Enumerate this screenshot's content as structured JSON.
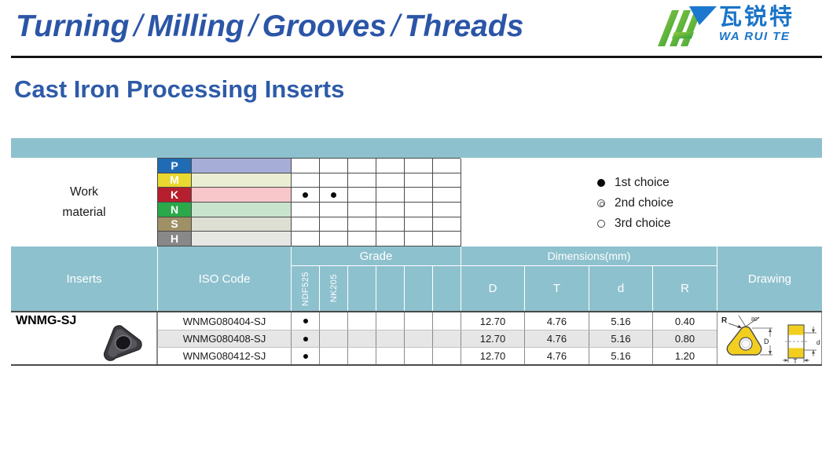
{
  "header": {
    "title_parts": [
      "Turning",
      "Milling",
      "Grooves",
      "Threads"
    ],
    "separator": "/"
  },
  "logo": {
    "chinese": "瓦锐特",
    "latin": "WA RUI TE"
  },
  "page_title": "Cast Iron Processing Inserts",
  "work_material": {
    "label_line1": "Work",
    "label_line2": "material",
    "rows": [
      {
        "letter": "P",
        "letter_bg": "#1F6CB4",
        "band_bg": "#A6ADD6",
        "marks": [
          "",
          "",
          "",
          "",
          "",
          ""
        ]
      },
      {
        "letter": "M",
        "letter_bg": "#E8D830",
        "band_bg": "#EAEFD4",
        "marks": [
          "",
          "",
          "",
          "",
          "",
          ""
        ]
      },
      {
        "letter": "K",
        "letter_bg": "#B51F2E",
        "band_bg": "#F8C7CA",
        "marks": [
          "1",
          "1",
          "",
          "",
          "",
          ""
        ]
      },
      {
        "letter": "N",
        "letter_bg": "#2BA84A",
        "band_bg": "#C9E4CD",
        "marks": [
          "",
          "",
          "",
          "",
          "",
          ""
        ]
      },
      {
        "letter": "S",
        "letter_bg": "#9F9066",
        "band_bg": "#DDDFD3",
        "marks": [
          "",
          "",
          "",
          "",
          "",
          ""
        ]
      },
      {
        "letter": "H",
        "letter_bg": "#888888",
        "band_bg": "#E6E7E3",
        "marks": [
          "",
          "",
          "",
          "",
          "",
          ""
        ]
      }
    ]
  },
  "legend": {
    "items": [
      {
        "marker": "filled",
        "label": "1st choice"
      },
      {
        "marker": "double",
        "label": "2nd choice"
      },
      {
        "marker": "open",
        "label": "3rd choice"
      }
    ]
  },
  "table": {
    "headers": {
      "inserts": "Inserts",
      "iso_code": "ISO Code",
      "grade": "Grade",
      "grade_columns": [
        "NDF525",
        "NK205",
        "",
        "",
        "",
        ""
      ],
      "dimensions": "Dimensions(mm)",
      "dim_columns": [
        "D",
        "T",
        "d",
        "R"
      ],
      "drawing": "Drawing"
    },
    "insert_name": "WNMG-SJ",
    "rows": [
      {
        "iso": "WNMG080404-SJ",
        "grade_marks": [
          "1",
          "",
          "",
          "",
          "",
          ""
        ],
        "dims": [
          "12.70",
          "4.76",
          "5.16",
          "0.40"
        ],
        "striped": false
      },
      {
        "iso": "WNMG080408-SJ",
        "grade_marks": [
          "1",
          "",
          "",
          "",
          "",
          ""
        ],
        "dims": [
          "12.70",
          "4.76",
          "5.16",
          "0.80"
        ],
        "striped": true
      },
      {
        "iso": "WNMG080412-SJ",
        "grade_marks": [
          "1",
          "",
          "",
          "",
          "",
          ""
        ],
        "dims": [
          "12.70",
          "4.76",
          "5.16",
          "1.20"
        ],
        "striped": false
      }
    ],
    "drawing_labels": {
      "radius": "R",
      "angle": "80°",
      "d_big": "D",
      "thickness": "T",
      "hole": "d"
    }
  },
  "colors": {
    "teal": "#8EC1CE",
    "blue": "#2B55A7",
    "title_blue": "#2E5BA8",
    "logo_blue": "#1B74C8",
    "logo_green_light": "#96CC3A",
    "logo_green_dark": "#2E9E3E",
    "stripe": "#E6E6E6",
    "insert_yellow": "#F2CF1E"
  }
}
